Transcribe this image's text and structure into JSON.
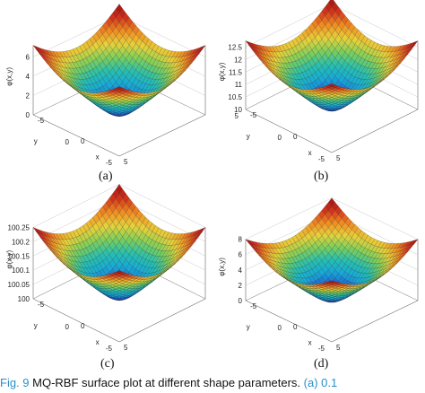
{
  "figure": {
    "caption": {
      "fig_label": "Fig. 9",
      "text": "MQ-RBF surface plot at different shape parameters.",
      "ref": "(a) 0.1"
    },
    "panels": [
      {
        "label": "(a)",
        "zlabel": "φ(x,y)",
        "xlabel": "x",
        "ylabel": "y",
        "zticks": [
          "0",
          "2",
          "4",
          "6"
        ],
        "xticks": [
          "-5",
          "0",
          "5"
        ],
        "yticks": [
          "-5",
          "0"
        ],
        "zrange": [
          0,
          7.2
        ]
      },
      {
        "label": "(b)",
        "zlabel": "φ(x,y)",
        "xlabel": "x",
        "ylabel": "y",
        "zticks": [
          "10",
          "10.5",
          "11",
          "11.5",
          "12",
          "12.5"
        ],
        "xticks": [
          "-5",
          "0",
          "5"
        ],
        "yticks": [
          "-5",
          "0",
          "5"
        ],
        "zrange": [
          10,
          12.75
        ]
      },
      {
        "label": "(c)",
        "zlabel": "φ(x,y)",
        "xlabel": "x",
        "ylabel": "y",
        "zticks": [
          "100",
          "100.05",
          "100.1",
          "100.15",
          "100.2",
          "100.25"
        ],
        "xticks": [
          "-5",
          "0",
          "5"
        ],
        "yticks": [
          "-5",
          "0"
        ],
        "zrange": [
          100,
          100.25
        ]
      },
      {
        "label": "(d)",
        "zlabel": "φ(x,y)",
        "xlabel": "x",
        "ylabel": "y",
        "zticks": [
          "0",
          "2",
          "4",
          "6",
          "8"
        ],
        "xticks": [
          "-5",
          "0",
          "5"
        ],
        "yticks": [
          "-5",
          "0"
        ],
        "zrange": [
          0,
          8
        ]
      }
    ]
  },
  "colors": {
    "colormap": [
      "#1a2b8c",
      "#1f5fd0",
      "#17a9d8",
      "#26c0b0",
      "#7ccf5a",
      "#e8d23a",
      "#f08a20",
      "#d0301a",
      "#9a1010"
    ],
    "caption_accent": "#2a8fc8"
  }
}
